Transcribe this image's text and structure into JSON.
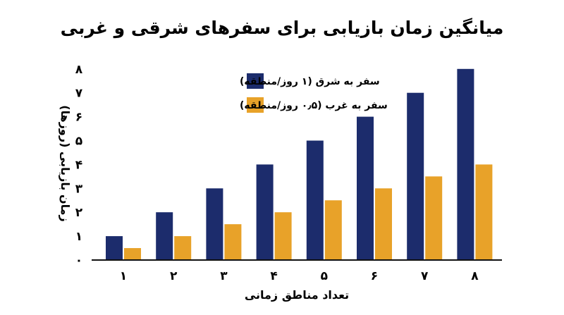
{
  "chart_data": {
    "type": "bar",
    "title": "میانگین زمان بازیابی برای سفرهای شرقی و غربی",
    "xlabel": "تعداد مناطق زمانی",
    "ylabel": "زمان بازیابی (روزها)",
    "categories": [
      "۱",
      "۲",
      "۳",
      "۴",
      "۵",
      "۶",
      "۷",
      "۸"
    ],
    "y_ticks": [
      "۰",
      "۱",
      "۲",
      "۳",
      "۴",
      "۵",
      "۶",
      "۷",
      "۸"
    ],
    "ylim": [
      0,
      8
    ],
    "grid": false,
    "legend_position": "top-left",
    "series": [
      {
        "name": "سفر به شرق (۱ روز/منطقه)",
        "color": "#1c2c6c",
        "values": [
          1,
          2,
          3,
          4,
          5,
          6,
          7,
          8
        ]
      },
      {
        "name": "سفر به غرب (۰٫۵ روز/منطقه)",
        "color": "#e8a229",
        "values": [
          0.5,
          1,
          1.5,
          2,
          2.5,
          3,
          3.5,
          4
        ]
      }
    ]
  }
}
